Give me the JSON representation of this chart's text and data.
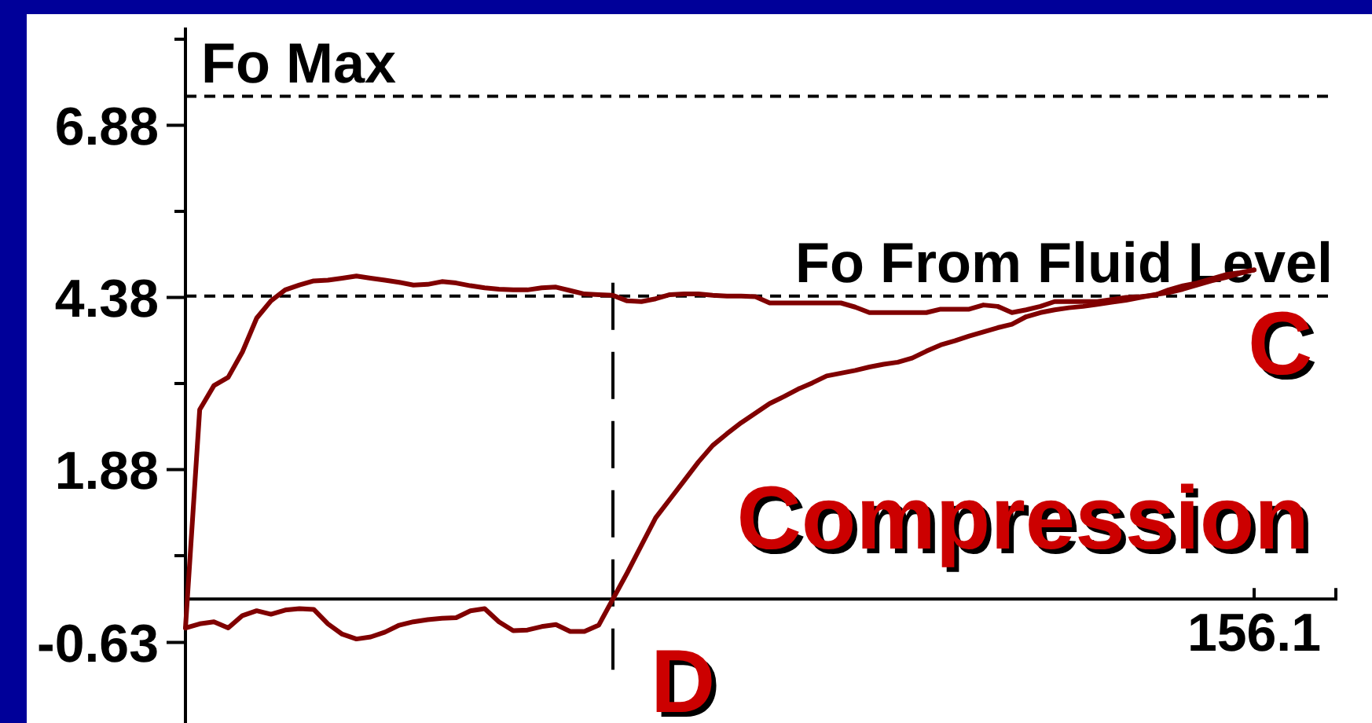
{
  "chart_data": {
    "type": "line",
    "categories": [
      null,
      null,
      null,
      null,
      null,
      null,
      null,
      null,
      null,
      null,
      null,
      null,
      null,
      null,
      null,
      null,
      null,
      null,
      null,
      null,
      null,
      null,
      null,
      null,
      null,
      null,
      null,
      null,
      null,
      null,
      null,
      null,
      null,
      null,
      null,
      null,
      null,
      null,
      null,
      null,
      null,
      null,
      null,
      null,
      null,
      null,
      null,
      null,
      null,
      null,
      null,
      null,
      null,
      null,
      null,
      null,
      null,
      null,
      null,
      null,
      null,
      null,
      null,
      null,
      null,
      null,
      null,
      null,
      null,
      null,
      null,
      null,
      null,
      null,
      null,
      "156.1"
    ],
    "ylim": [
      -1.8,
      8.3
    ],
    "yticks": [
      {
        "value": 8.13,
        "label": null
      },
      6.88,
      {
        "value": 5.63,
        "label": null
      },
      4.38,
      {
        "value": 3.13,
        "label": null
      },
      1.88,
      {
        "value": 0.63,
        "label": null
      },
      -0.63
    ],
    "series": [
      {
        "color": "#800000",
        "values": [
          -0.42,
          2.75,
          3.1,
          3.22,
          3.59,
          4.08,
          4.33,
          4.49,
          4.56,
          4.62,
          4.63,
          4.66,
          4.69,
          4.66,
          4.63,
          4.6,
          4.56,
          4.57,
          4.61,
          4.59,
          4.55,
          4.52,
          4.5,
          4.49,
          4.49,
          4.52,
          4.53,
          4.48,
          4.43,
          4.42,
          4.41,
          4.33,
          4.32,
          4.36,
          4.42,
          4.43,
          4.43,
          4.41,
          4.4,
          4.4,
          4.39,
          4.3,
          4.3,
          4.3,
          4.3,
          4.3,
          4.3,
          4.24,
          4.16,
          4.16,
          4.16,
          4.16,
          4.16,
          4.21,
          4.21,
          4.21,
          4.27,
          4.25,
          4.16,
          4.2,
          4.25,
          4.32,
          4.32,
          4.32,
          4.32,
          4.35,
          4.38,
          4.39,
          4.41,
          4.49,
          4.55,
          4.59,
          4.65,
          4.71,
          4.74,
          4.78
        ]
      },
      {
        "color": "#800000",
        "values": [
          -0.42,
          -0.36,
          -0.33,
          -0.42,
          -0.24,
          -0.17,
          -0.22,
          -0.16,
          -0.14,
          -0.15,
          -0.36,
          -0.51,
          -0.58,
          -0.55,
          -0.48,
          -0.38,
          -0.33,
          -0.3,
          -0.28,
          -0.27,
          -0.17,
          -0.14,
          -0.33,
          -0.46,
          -0.45,
          -0.4,
          -0.37,
          -0.47,
          -0.47,
          -0.38,
          0,
          0.38,
          0.78,
          1.18,
          1.45,
          1.72,
          1.99,
          2.23,
          2.4,
          2.56,
          2.7,
          2.84,
          2.94,
          3.05,
          3.14,
          3.24,
          3.28,
          3.32,
          3.37,
          3.41,
          3.44,
          3.5,
          3.6,
          3.69,
          3.75,
          3.82,
          3.88,
          3.94,
          3.99,
          4.1,
          4.16,
          4.2,
          4.23,
          4.25,
          4.28,
          4.31,
          4.34,
          4.38,
          4.42,
          4.45,
          4.5,
          4.56,
          4.62,
          4.67,
          4.73,
          4.78
        ]
      }
    ],
    "ref_lines": [
      {
        "axis": "y",
        "value": 7.3,
        "label": "Fo Max",
        "color": "#000000",
        "line_style": "dashed"
      },
      {
        "axis": "y",
        "value": 4.4,
        "label": "Fo From Fluid Level",
        "color": "#000000",
        "line_style": "dashed"
      }
    ],
    "annotations": [
      {
        "text": "C",
        "x": "156.1",
        "y": 4.78
      },
      "Compression",
      "D"
    ]
  }
}
